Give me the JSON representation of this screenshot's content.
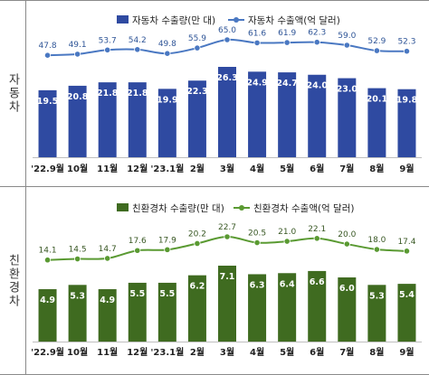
{
  "panels": [
    {
      "side_label": "자동차",
      "legend_bar": "자동차 수출량(만 대)",
      "legend_line": "자동차 수출액(억 달러)",
      "colors": {
        "bar": "#2f4aa1",
        "line": "#4a78c2",
        "line_value": "#2f5597"
      }
    },
    {
      "side_label": "친환경차",
      "legend_bar": "친환경차 수출량(만 대)",
      "legend_line": "친환경차 수출액(억 달러)",
      "colors": {
        "bar": "#3f6b20",
        "line": "#5a9a32",
        "line_value": "#385723"
      }
    }
  ],
  "chart_data": [
    {
      "type": "bar",
      "categories": [
        "'22.9월",
        "10월",
        "11월",
        "12월",
        "'23.1월",
        "2월",
        "3월",
        "4월",
        "5월",
        "6월",
        "7월",
        "8월",
        "9월"
      ],
      "series": [
        {
          "name": "자동차 수출량(만 대)",
          "type": "bar",
          "values": [
            19.5,
            20.8,
            21.8,
            21.8,
            19.9,
            22.3,
            26.3,
            24.9,
            24.7,
            24.0,
            23.0,
            20.1,
            19.8
          ]
        },
        {
          "name": "자동차 수출액(억 달러)",
          "type": "line",
          "values": [
            47.8,
            49.1,
            53.7,
            54.2,
            49.8,
            55.9,
            65.0,
            61.6,
            61.9,
            62.3,
            59.0,
            52.9,
            52.3
          ]
        }
      ],
      "legend": "top"
    },
    {
      "type": "bar",
      "categories": [
        "'22.9월",
        "10월",
        "11월",
        "12월",
        "'23.1월",
        "2월",
        "3월",
        "4월",
        "5월",
        "6월",
        "7월",
        "8월",
        "9월"
      ],
      "series": [
        {
          "name": "친환경차 수출량(만 대)",
          "type": "bar",
          "values": [
            4.9,
            5.3,
            4.9,
            5.5,
            5.5,
            6.2,
            7.1,
            6.3,
            6.4,
            6.6,
            6.0,
            5.3,
            5.4
          ]
        },
        {
          "name": "친환경차 수출액(억 달러)",
          "type": "line",
          "values": [
            14.1,
            14.5,
            14.7,
            17.6,
            17.9,
            20.2,
            22.7,
            20.5,
            21.0,
            22.1,
            20.0,
            18.0,
            17.4
          ]
        }
      ],
      "legend": "top"
    }
  ]
}
